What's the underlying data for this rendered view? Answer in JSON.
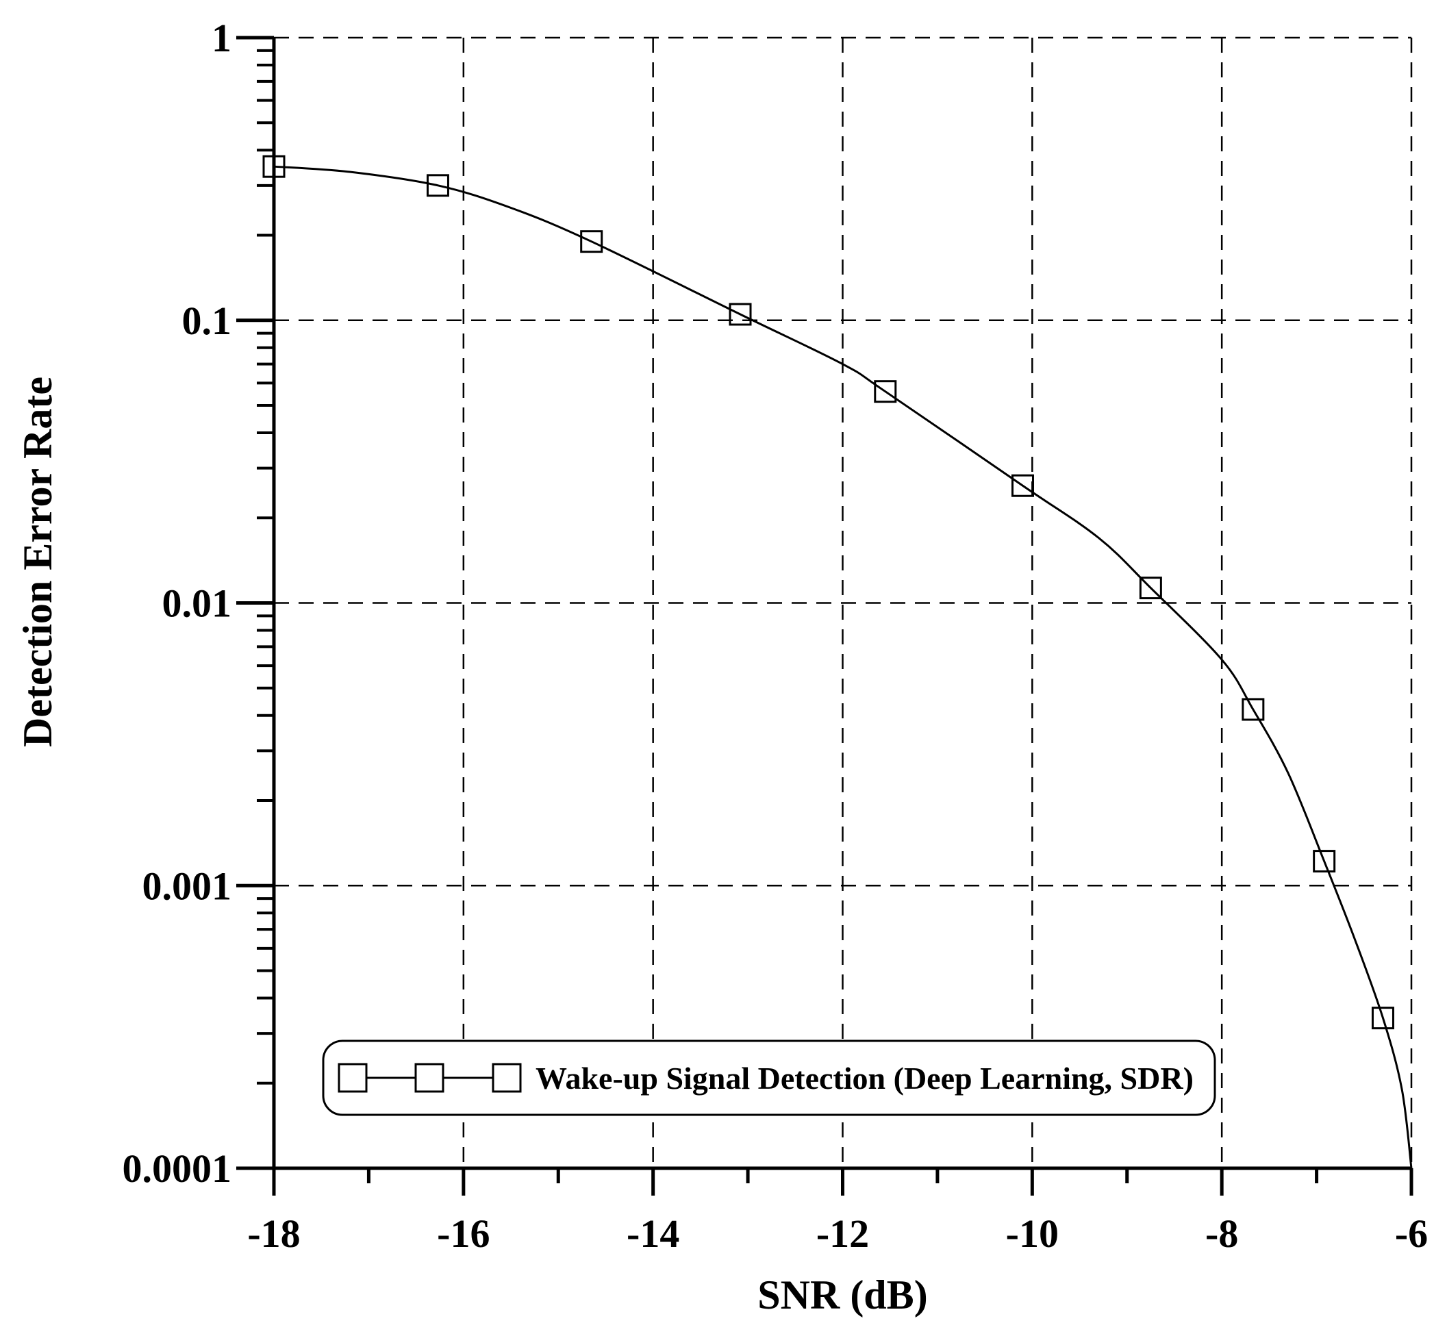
{
  "chart_data": {
    "type": "line",
    "title": "",
    "xlabel": "SNR (dB)",
    "ylabel": "Detection Error Rate",
    "xlim": [
      -18,
      -6
    ],
    "ylim": [
      0.0001,
      1
    ],
    "yscale": "log",
    "grid": true,
    "grid_style": "dashed",
    "legend_position": "bottom-center",
    "x_ticks": [
      -18,
      -16,
      -14,
      -12,
      -10,
      -8,
      -6
    ],
    "x_tick_labels": [
      "-18",
      "-16",
      "-14",
      "-12",
      "-10",
      "-8",
      "-6"
    ],
    "y_ticks": [
      0.0001,
      0.001,
      0.01,
      0.1,
      1
    ],
    "y_tick_labels": [
      "0.0001",
      "0.001",
      "0.01",
      "0.1",
      "1"
    ],
    "series": [
      {
        "name": "Wake-up Signal Detection (Deep Learning, SDR)",
        "marker": "square",
        "color": "#000000",
        "points": [
          {
            "x": -18.0,
            "y": 0.35
          },
          {
            "x": -16.27,
            "y": 0.3
          },
          {
            "x": -14.65,
            "y": 0.19
          },
          {
            "x": -13.08,
            "y": 0.105
          },
          {
            "x": -11.55,
            "y": 0.056
          },
          {
            "x": -10.1,
            "y": 0.026
          },
          {
            "x": -8.75,
            "y": 0.0113
          },
          {
            "x": -7.67,
            "y": 0.0042
          },
          {
            "x": -6.92,
            "y": 0.00122
          },
          {
            "x": -6.3,
            "y": 0.00034
          }
        ],
        "curve": [
          {
            "x": -18.0,
            "y": 0.35
          },
          {
            "x": -17.2,
            "y": 0.335
          },
          {
            "x": -16.27,
            "y": 0.3
          },
          {
            "x": -15.5,
            "y": 0.25
          },
          {
            "x": -14.65,
            "y": 0.19
          },
          {
            "x": -13.08,
            "y": 0.105
          },
          {
            "x": -12.0,
            "y": 0.07
          },
          {
            "x": -11.55,
            "y": 0.056
          },
          {
            "x": -10.1,
            "y": 0.026
          },
          {
            "x": -9.3,
            "y": 0.017
          },
          {
            "x": -8.75,
            "y": 0.0113
          },
          {
            "x": -8.0,
            "y": 0.0063
          },
          {
            "x": -7.67,
            "y": 0.0042
          },
          {
            "x": -7.3,
            "y": 0.0025
          },
          {
            "x": -6.92,
            "y": 0.00122
          },
          {
            "x": -6.6,
            "y": 0.00065
          },
          {
            "x": -6.3,
            "y": 0.00034
          },
          {
            "x": -6.1,
            "y": 0.00019
          },
          {
            "x": -6.0,
            "y": 0.0001
          }
        ]
      }
    ]
  }
}
